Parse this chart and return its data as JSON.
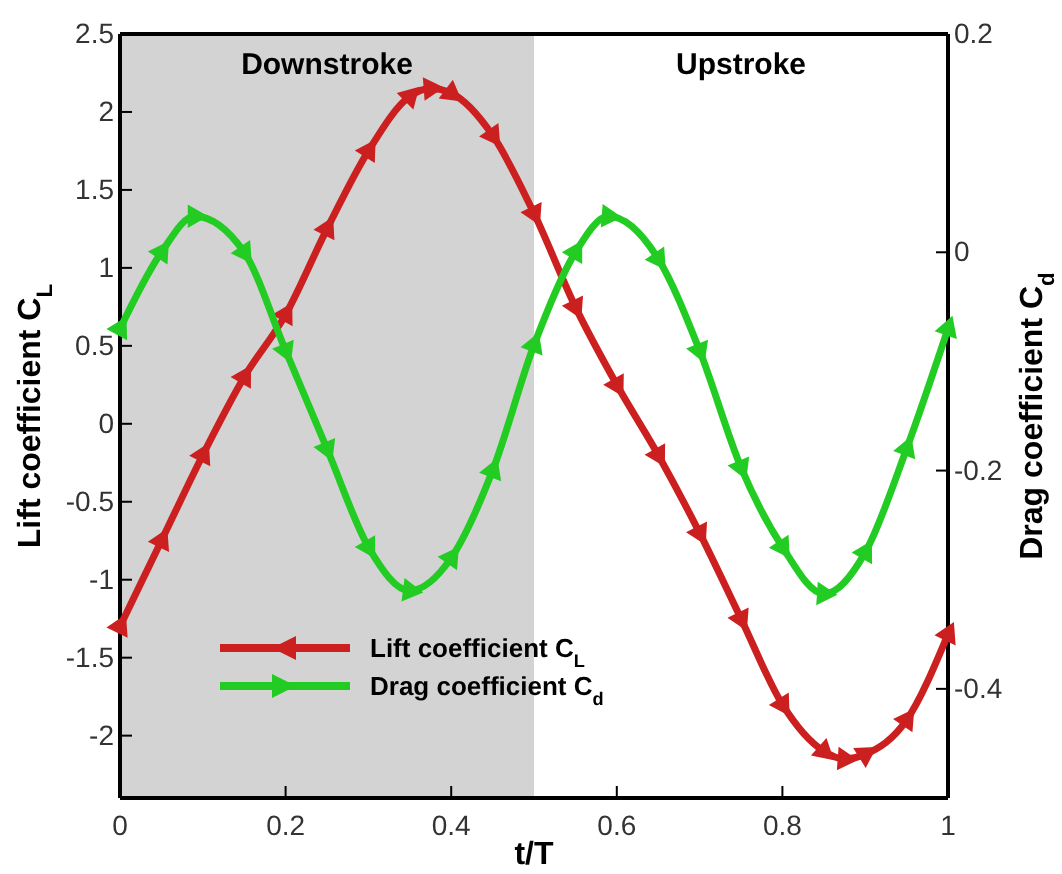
{
  "chart_data": {
    "type": "line",
    "xlabel": "t/T",
    "ylabel": "Lift coefficient C$_{L}$",
    "y2label": "Drag coefficient C$_{d}$",
    "xlim": [
      0,
      1
    ],
    "xticks": [
      0,
      0.2,
      0.4,
      0.6,
      0.8,
      1
    ],
    "ylim": [
      -2.4,
      2.5
    ],
    "yticks": [
      -2,
      -1.5,
      -1,
      -0.5,
      0,
      0.5,
      1,
      1.5,
      2,
      2.5
    ],
    "y2lim": [
      -0.5,
      0.2
    ],
    "y2ticks": [
      -0.4,
      -0.2,
      0,
      0.2
    ],
    "bands": [
      {
        "axis": "x",
        "from": 0,
        "to": 0.5,
        "label": "Downstroke",
        "color": "#d3d3d3"
      }
    ],
    "annotations": [
      "Upstroke"
    ],
    "legend": "bottom left",
    "marker": "triangle",
    "line_style": "solid",
    "grid": false,
    "series": [
      {
        "name": "Lift coefficient C$_{L}$",
        "color": "#cc1f1f",
        "x": [
          0,
          0.05,
          0.1,
          0.15,
          0.2,
          0.25,
          0.3,
          0.35,
          0.375,
          0.4,
          0.45,
          0.5,
          0.55,
          0.6,
          0.65,
          0.7,
          0.75,
          0.8,
          0.85,
          0.875,
          0.9,
          0.95,
          1
        ],
        "values": [
          -1.3,
          -0.75,
          -0.2,
          0.3,
          0.7,
          1.25,
          1.75,
          2.1,
          2.15,
          2.12,
          1.85,
          1.35,
          0.75,
          0.25,
          -0.2,
          -0.7,
          -1.25,
          -1.8,
          -2.1,
          -2.15,
          -2.12,
          -1.9,
          -1.35
        ]
      },
      {
        "name": "Drag coefficient C$_{d}$",
        "color": "#22cc22",
        "axis": "y2",
        "x": [
          0,
          0.05,
          0.09,
          0.15,
          0.2,
          0.25,
          0.3,
          0.35,
          0.4,
          0.45,
          0.5,
          0.55,
          0.59,
          0.65,
          0.7,
          0.75,
          0.8,
          0.85,
          0.9,
          0.95,
          1
        ],
        "values": [
          -0.07,
          0.0,
          0.033,
          0.0,
          -0.09,
          -0.18,
          -0.27,
          -0.31,
          -0.28,
          -0.2,
          -0.085,
          0.0,
          0.033,
          -0.006,
          -0.09,
          -0.197,
          -0.27,
          -0.313,
          -0.275,
          -0.18,
          -0.07
        ]
      }
    ]
  }
}
